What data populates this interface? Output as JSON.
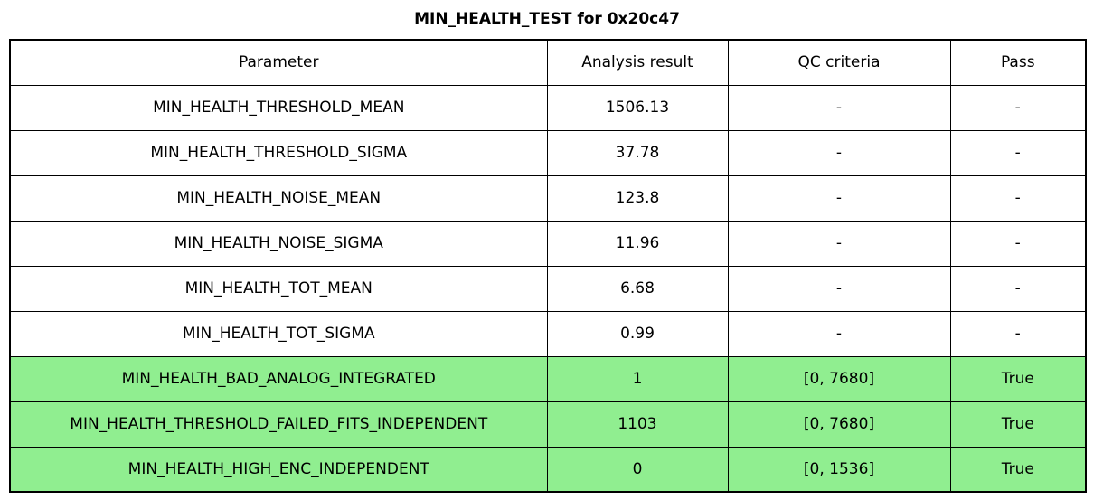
{
  "title": "MIN_HEALTH_TEST for 0x20c47",
  "chart_data": {
    "type": "table",
    "title": "MIN_HEALTH_TEST for 0x20c47",
    "columns": [
      "Parameter",
      "Analysis result",
      "QC criteria",
      "Pass"
    ],
    "rows": [
      [
        "MIN_HEALTH_THRESHOLD_MEAN",
        "1506.13",
        "-",
        "-"
      ],
      [
        "MIN_HEALTH_THRESHOLD_SIGMA",
        "37.78",
        "-",
        "-"
      ],
      [
        "MIN_HEALTH_NOISE_MEAN",
        "123.8",
        "-",
        "-"
      ],
      [
        "MIN_HEALTH_NOISE_SIGMA",
        "11.96",
        "-",
        "-"
      ],
      [
        "MIN_HEALTH_TOT_MEAN",
        "6.68",
        "-",
        "-"
      ],
      [
        "MIN_HEALTH_TOT_SIGMA",
        "0.99",
        "-",
        "-"
      ],
      [
        "MIN_HEALTH_BAD_ANALOG_INTEGRATED",
        "1",
        "[0, 7680]",
        "True"
      ],
      [
        "MIN_HEALTH_THRESHOLD_FAILED_FITS_INDEPENDENT",
        "1103",
        "[0, 7680]",
        "True"
      ],
      [
        "MIN_HEALTH_HIGH_ENC_INDEPENDENT",
        "0",
        "[0, 1536]",
        "True"
      ]
    ],
    "highlighted_rows": [
      6,
      7,
      8
    ],
    "legend_position": "none",
    "grid": true,
    "colors": {
      "highlight": "#90EE90",
      "row_default": "#FFFFFF",
      "border": "#000000",
      "text": "#000000",
      "background": "#FFFFFF"
    }
  }
}
